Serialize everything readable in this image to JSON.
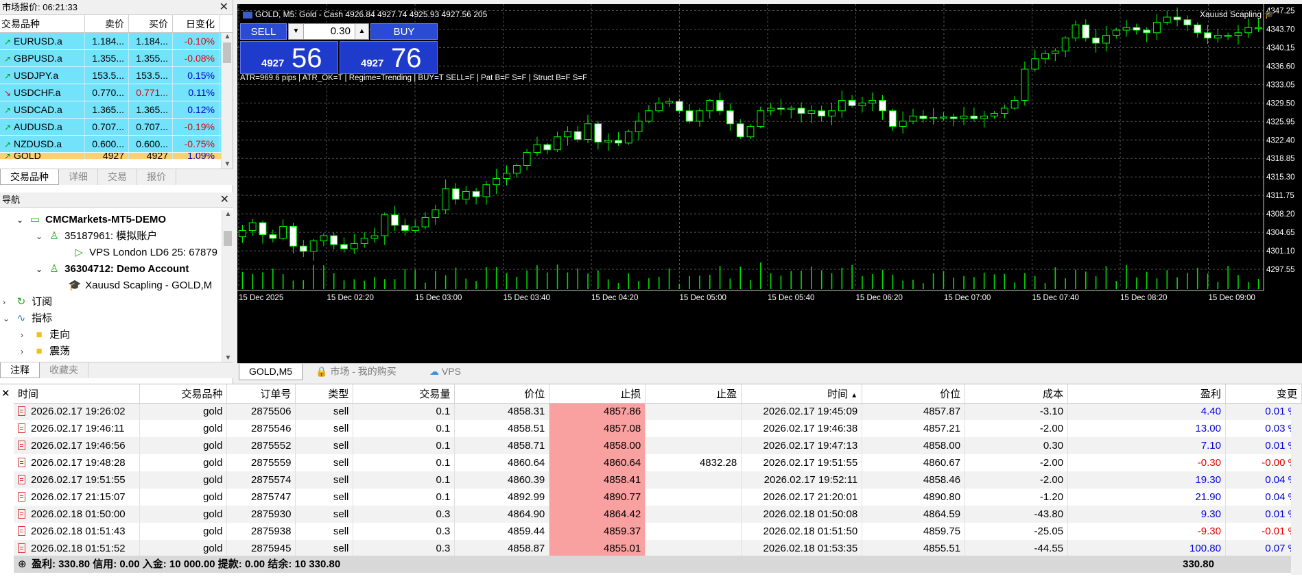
{
  "market_watch": {
    "title": "市场报价: 06:21:33",
    "columns": [
      "交易品种",
      "卖价",
      "买价",
      "日变化"
    ],
    "rows": [
      {
        "symbol": "EURUSD.a",
        "bid": "1.184...",
        "ask": "1.184...",
        "change": "-0.10%",
        "dir": "up",
        "neg": true
      },
      {
        "symbol": "GBPUSD.a",
        "bid": "1.355...",
        "ask": "1.355...",
        "change": "-0.08%",
        "dir": "up",
        "neg": true
      },
      {
        "symbol": "USDJPY.a",
        "bid": "153.5...",
        "ask": "153.5...",
        "change": "0.15%",
        "dir": "up",
        "neg": false
      },
      {
        "symbol": "USDCHF.a",
        "bid": "0.770...",
        "ask": "0.771...",
        "change": "0.11%",
        "dir": "down",
        "neg": false
      },
      {
        "symbol": "USDCAD.a",
        "bid": "1.365...",
        "ask": "1.365...",
        "change": "0.12%",
        "dir": "up",
        "neg": false
      },
      {
        "symbol": "AUDUSD.a",
        "bid": "0.707...",
        "ask": "0.707...",
        "change": "-0.19%",
        "dir": "up",
        "neg": true
      },
      {
        "symbol": "NZDUSD.a",
        "bid": "0.600...",
        "ask": "0.600...",
        "change": "-0.75%",
        "dir": "up",
        "neg": true
      },
      {
        "symbol": "GOLD",
        "bid": "4927",
        "ask": "4927",
        "change": "1.09%",
        "dir": "up",
        "neg": false
      }
    ],
    "tabs": [
      "交易品种",
      "详细",
      "交易",
      "报价"
    ]
  },
  "navigator": {
    "title": "导航",
    "server": "CMCMarkets-MT5-DEMO",
    "account1": "35187961: 模拟账户",
    "vps": "VPS London LD6 25: 67879",
    "account2": "36304712: Demo Account",
    "ea": "Xauusd Scapling - GOLD,M",
    "subscriptions": "订阅",
    "indicators": "指标",
    "folder_trend": "走向",
    "folder_osc": "震荡",
    "tabs": [
      "注释",
      "收藏夹"
    ]
  },
  "chart": {
    "title": "GOLD, M5:  Gold - Cash  4926.84 4927.74 4925.93 4927.56  205",
    "ea_label": "Xauusd Scapling",
    "sell_label": "SELL",
    "buy_label": "BUY",
    "volume": "0.30",
    "sell_small": "4927",
    "sell_big": "56",
    "buy_small": "4927",
    "buy_big": "76",
    "indicator_text": "ATR=969.6 pips | ATR_OK=T | Regime=Trending | BUY=T SELL=F | Pat B=F S=F | Struct B=F S=F",
    "tabs": [
      "GOLD,M5",
      "市场 - 我的购买",
      "VPS"
    ]
  },
  "chart_data": {
    "type": "candlestick",
    "y_ticks": [
      "4347.25",
      "4343.70",
      "4340.15",
      "4336.60",
      "4333.05",
      "4329.50",
      "4325.95",
      "4322.40",
      "4318.85",
      "4315.30",
      "4311.75",
      "4308.20",
      "4304.65",
      "4301.10",
      "4297.55"
    ],
    "x_ticks": [
      "15 Dec 2025",
      "15 Dec 02:20",
      "15 Dec 03:00",
      "15 Dec 03:40",
      "15 Dec 04:20",
      "15 Dec 05:00",
      "15 Dec 05:40",
      "15 Dec 06:20",
      "15 Dec 07:00",
      "15 Dec 07:40",
      "15 Dec 08:20",
      "15 Dec 09:00"
    ],
    "ylim": [
      4294.0,
      4348.5
    ],
    "closes": [
      4305.0,
      4306.5,
      4304.2,
      4303.5,
      4305.8,
      4302.0,
      4301.0,
      4303.0,
      4304.0,
      4302.3,
      4301.5,
      4302.5,
      4303.5,
      4304.0,
      4308.0,
      4306.0,
      4305.0,
      4305.7,
      4307.5,
      4309.0,
      4313.0,
      4311.0,
      4312.5,
      4311.5,
      4313.8,
      4315.0,
      4316.0,
      4317.5,
      4320.0,
      4321.5,
      4320.5,
      4323.0,
      4324.0,
      4322.5,
      4325.5,
      4322.0,
      4322.3,
      4321.8,
      4324.0,
      4326.0,
      4328.0,
      4329.5,
      4329.8,
      4328.0,
      4326.0,
      4328.0,
      4330.0,
      4328.0,
      4325.5,
      4323.0,
      4325.0,
      4328.0,
      4328.5,
      4328.3,
      4328.5,
      4327.5,
      4328.0,
      4327.0,
      4328.0,
      4330.0,
      4329.0,
      4329.5,
      4330.0,
      4328.0,
      4325.0,
      4326.0,
      4327.0,
      4326.5,
      4326.7,
      4326.8,
      4326.5,
      4327.0,
      4326.5,
      4327.0,
      4327.5,
      4328.5,
      4330.0,
      4336.0,
      4338.0,
      4339.0,
      4339.5,
      4342.0,
      4344.5,
      4342.0,
      4341.0,
      4342.5,
      4343.5,
      4344.0,
      4343.5,
      4343.0,
      4345.0,
      4346.0,
      4345.5,
      4344.5,
      4343.0,
      4342.0,
      4342.5,
      4342.5,
      4343.0,
      4344.0,
      4344.0
    ]
  },
  "toolbox": {
    "columns": [
      "时间",
      "交易品种",
      "订单号",
      "类型",
      "交易量",
      "价位",
      "止损",
      "止盈",
      "时间",
      "价位",
      "成本",
      "盈利",
      "变更"
    ],
    "rows": [
      [
        "2026.02.17 19:26:02",
        "gold",
        "2875506",
        "sell",
        "0.1",
        "4858.31",
        "4857.86",
        "",
        "2026.02.17 19:45:09",
        "4857.87",
        "-3.10",
        "4.40",
        "0.01 %"
      ],
      [
        "2026.02.17 19:46:11",
        "gold",
        "2875546",
        "sell",
        "0.1",
        "4858.51",
        "4857.08",
        "",
        "2026.02.17 19:46:38",
        "4857.21",
        "-2.00",
        "13.00",
        "0.03 %"
      ],
      [
        "2026.02.17 19:46:56",
        "gold",
        "2875552",
        "sell",
        "0.1",
        "4858.71",
        "4858.00",
        "",
        "2026.02.17 19:47:13",
        "4858.00",
        "0.30",
        "7.10",
        "0.01 %"
      ],
      [
        "2026.02.17 19:48:28",
        "gold",
        "2875559",
        "sell",
        "0.1",
        "4860.64",
        "4860.64",
        "4832.28",
        "2026.02.17 19:51:55",
        "4860.67",
        "-2.00",
        "-0.30",
        "-0.00 %"
      ],
      [
        "2026.02.17 19:51:55",
        "gold",
        "2875574",
        "sell",
        "0.1",
        "4860.39",
        "4858.41",
        "",
        "2026.02.17 19:52:11",
        "4858.46",
        "-2.00",
        "19.30",
        "0.04 %"
      ],
      [
        "2026.02.17 21:15:07",
        "gold",
        "2875747",
        "sell",
        "0.1",
        "4892.99",
        "4890.77",
        "",
        "2026.02.17 21:20:01",
        "4890.80",
        "-1.20",
        "21.90",
        "0.04 %"
      ],
      [
        "2026.02.18 01:50:00",
        "gold",
        "2875930",
        "sell",
        "0.3",
        "4864.90",
        "4864.42",
        "",
        "2026.02.18 01:50:08",
        "4864.59",
        "-43.80",
        "9.30",
        "0.01 %"
      ],
      [
        "2026.02.18 01:51:43",
        "gold",
        "2875938",
        "sell",
        "0.3",
        "4859.44",
        "4859.37",
        "",
        "2026.02.18 01:51:50",
        "4859.75",
        "-25.05",
        "-9.30",
        "-0.01 %"
      ],
      [
        "2026.02.18 01:51:52",
        "gold",
        "2875945",
        "sell",
        "0.3",
        "4858.87",
        "4855.01",
        "",
        "2026.02.18 01:53:35",
        "4855.51",
        "-44.55",
        "100.80",
        "0.07 %"
      ]
    ],
    "summary": "盈利: 330.80  信用: 0.00  入金: 10 000.00  提款: 0.00  结余: 10 330.80",
    "total": "330.80"
  }
}
